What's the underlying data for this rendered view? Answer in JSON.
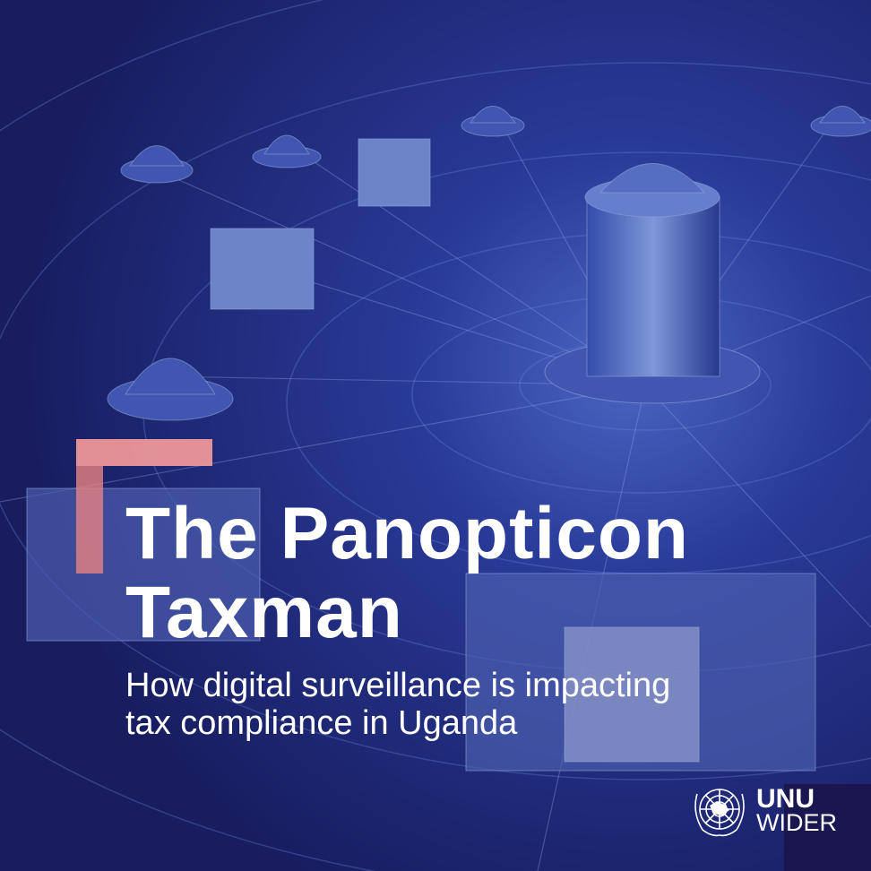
{
  "title": {
    "line1": "The Panopticon",
    "line2": "Taxman"
  },
  "subtitle": {
    "line1": "How digital surveillance is impacting",
    "line2": "tax compliance in Uganda"
  },
  "logo": {
    "line1": "UNU",
    "line2": "WIDER",
    "icon": "un-emblem-icon"
  },
  "colors": {
    "background": "#1c2470",
    "accent": "#f29a9a",
    "text": "#ffffff",
    "logo_box": "#1a1650"
  }
}
